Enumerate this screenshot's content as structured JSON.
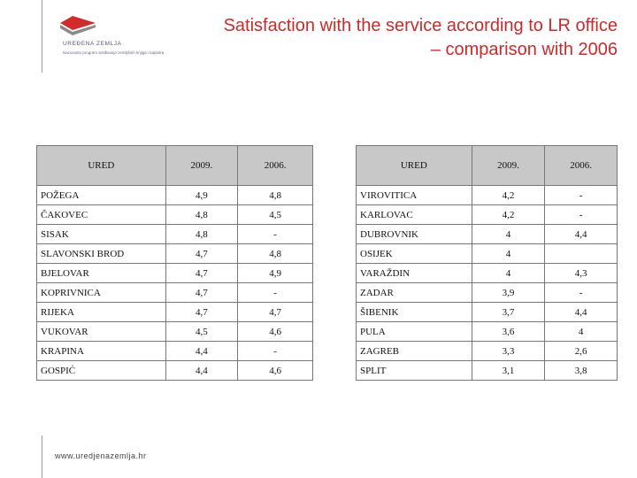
{
  "header": {
    "logo_name": "UREĐENA ZEMLJA",
    "logo_sub": "Nacionalni program sređivanja zemljišnih knjiga i katastra",
    "title_line1": "Satisfaction with the service according to LR office",
    "title_line2": "– comparison with 2006"
  },
  "footer": {
    "url": "www.uredjenazemlja.hr"
  },
  "colors": {
    "title": "#cc2a2a",
    "header_cell": "#c8c8c8",
    "logo_red": "#d12b2b"
  },
  "tables": {
    "left": {
      "headers": [
        "URED",
        "2009.",
        "2006."
      ],
      "rows": [
        [
          "POŽEGA",
          "4,9",
          "4,8"
        ],
        [
          "ČAKOVEC",
          "4,8",
          "4,5"
        ],
        [
          "SISAK",
          "4,8",
          "-"
        ],
        [
          "SLAVONSKI BROD",
          "4,7",
          "4,8"
        ],
        [
          "BJELOVAR",
          "4,7",
          "4,9"
        ],
        [
          "KOPRIVNICA",
          "4,7",
          "-"
        ],
        [
          "RIJEKA",
          "4,7",
          "4,7"
        ],
        [
          "VUKOVAR",
          "4,5",
          "4,6"
        ],
        [
          "KRAPINA",
          "4,4",
          "-"
        ],
        [
          "GOSPIĆ",
          "4,4",
          "4,6"
        ]
      ]
    },
    "right": {
      "headers": [
        "URED",
        "2009.",
        "2006."
      ],
      "rows": [
        [
          "VIROVITICA",
          "4,2",
          "-"
        ],
        [
          "KARLOVAC",
          "4,2",
          "-"
        ],
        [
          "DUBROVNIK",
          "4",
          "4,4"
        ],
        [
          "OSIJEK",
          "4",
          ""
        ],
        [
          "VARAŽDIN",
          "4",
          "4,3"
        ],
        [
          "ZADAR",
          "3,9",
          "-"
        ],
        [
          "ŠIBENIK",
          "3,7",
          "4,4"
        ],
        [
          "PULA",
          "3,6",
          "4"
        ],
        [
          "ZAGREB",
          "3,3",
          "2,6"
        ],
        [
          "SPLIT",
          "3,1",
          "3,8"
        ]
      ]
    }
  }
}
